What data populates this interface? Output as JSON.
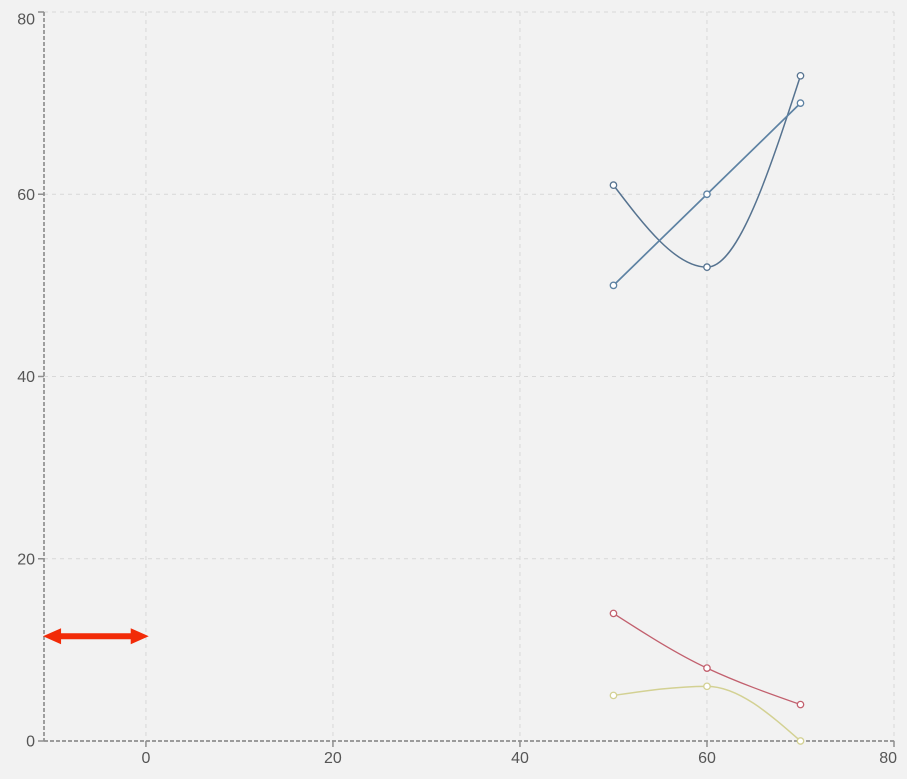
{
  "chart_data": {
    "type": "line",
    "title": "",
    "legend": "none",
    "grid": "dashed",
    "x_domain": [
      -10.9,
      80
    ],
    "y_domain": [
      0,
      80
    ],
    "x_ticks": [
      0,
      20,
      40,
      60,
      80
    ],
    "y_ticks": [
      0,
      20,
      40,
      60,
      80
    ],
    "x_tick_labels": [
      "0",
      "20",
      "40",
      "60",
      "80"
    ],
    "y_tick_labels": [
      "0",
      "20",
      "40",
      "60",
      "80"
    ],
    "series": [
      {
        "name": "dark-blue-curve",
        "interpolation": "monotone",
        "color": "#567390",
        "line_width": 1.5,
        "marker": "open-circle",
        "points": [
          [
            50,
            61
          ],
          [
            60,
            52
          ],
          [
            70,
            73
          ]
        ]
      },
      {
        "name": "steel-blue-line",
        "interpolation": "linear",
        "color": "#5d82a3",
        "line_width": 1.7,
        "marker": "open-circle",
        "points": [
          [
            50,
            50
          ],
          [
            60,
            60
          ],
          [
            70,
            70
          ]
        ]
      },
      {
        "name": "red-curve",
        "interpolation": "monotone",
        "color": "#c2606e",
        "line_width": 1.3,
        "marker": "open-circle",
        "points": [
          [
            50,
            14
          ],
          [
            60,
            8
          ],
          [
            70,
            4
          ]
        ]
      },
      {
        "name": "yellow-green-curve",
        "interpolation": "monotone",
        "color": "#d3d193",
        "line_width": 1.5,
        "marker": "open-circle",
        "points": [
          [
            50,
            5
          ],
          [
            60,
            6
          ],
          [
            70,
            0
          ]
        ]
      }
    ],
    "annotations": [
      {
        "name": "red-double-arrow",
        "type": "double-headed-arrow",
        "color": "#f22b08",
        "x1": -11,
        "x2": 0.3,
        "y": 11.5
      }
    ],
    "style": {
      "background": "#f2f2f2",
      "grid_color": "#d8d8d8",
      "axis_color": "#8f8f8f",
      "label_color": "#565656",
      "marker_fill": "#ffffff",
      "label_font_size": 16
    }
  }
}
